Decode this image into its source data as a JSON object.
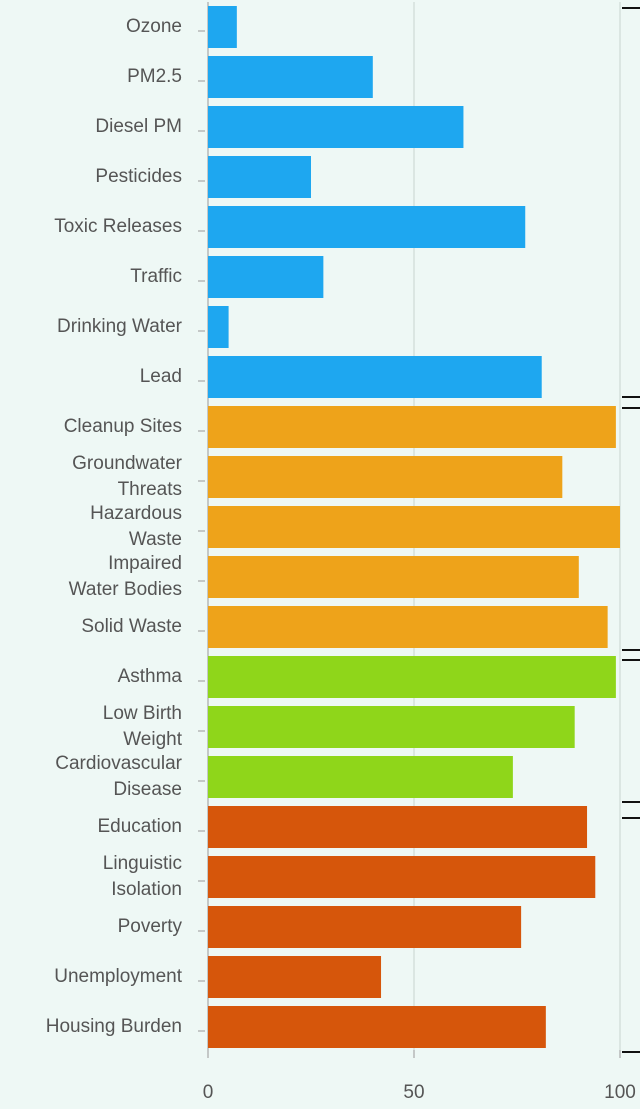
{
  "chart_data": {
    "type": "barh",
    "categories": [
      "Ozone",
      "PM2.5",
      "Diesel PM",
      "Pesticides",
      "Toxic Releases",
      "Traffic",
      "Drinking Water",
      "Lead",
      "Cleanup Sites",
      "Groundwater\nThreats",
      "Hazardous\nWaste",
      "Impaired\nWater Bodies",
      "Solid Waste",
      "Asthma",
      "Low Birth\nWeight",
      "Cardiovascular\nDisease",
      "Education",
      "Linguistic\nIsolation",
      "Poverty",
      "Unemployment",
      "Housing Burden"
    ],
    "values": [
      7,
      40,
      62,
      25,
      77,
      28,
      5,
      81,
      99,
      86,
      100,
      90,
      97,
      99,
      89,
      74,
      92,
      94,
      76,
      42,
      82
    ],
    "colors": [
      "#1ea7f0",
      "#1ea7f0",
      "#1ea7f0",
      "#1ea7f0",
      "#1ea7f0",
      "#1ea7f0",
      "#1ea7f0",
      "#1ea7f0",
      "#eea31a",
      "#eea31a",
      "#eea31a",
      "#eea31a",
      "#eea31a",
      "#8fd61a",
      "#8fd61a",
      "#8fd61a",
      "#d6560b",
      "#d6560b",
      "#d6560b",
      "#d6560b",
      "#d6560b"
    ],
    "xlim": [
      0,
      100
    ],
    "xticks": [
      0,
      50,
      100
    ],
    "grid": true
  }
}
